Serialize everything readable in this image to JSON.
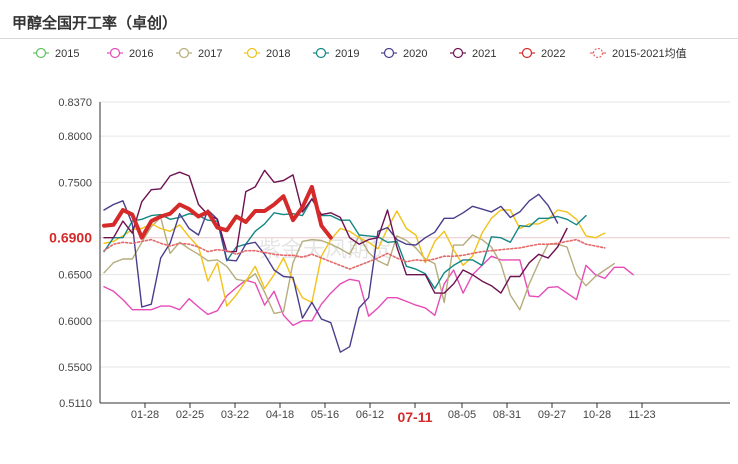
{
  "title": "甲醇全国开工率（卓创）",
  "chart_data": {
    "type": "line",
    "title": "甲醇全国开工率（卓创）",
    "xlabel": "",
    "ylabel": "",
    "ylim": [
      0.511,
      0.837
    ],
    "yticks": [
      "0.8370",
      "0.8000",
      "0.7500",
      "0.6900",
      "0.6500",
      "0.6000",
      "0.5500",
      "0.5110"
    ],
    "x_ticks": [
      "01-28",
      "02-25",
      "03-22",
      "04-18",
      "05-16",
      "06-12",
      "07-11",
      "08-05",
      "08-31",
      "09-27",
      "10-28",
      "11-23"
    ],
    "highlight_x": "07-11",
    "highlight_y": "0.6900",
    "grid": "horizontal",
    "legend_position": "top",
    "watermark": "紫金天风期货",
    "series": [
      {
        "name": "2015",
        "color": "#5ec45e",
        "style": "solid",
        "values": []
      },
      {
        "name": "2016",
        "color": "#e64bb8",
        "style": "solid",
        "values": [
          0.637,
          0.632,
          0.623,
          0.612,
          0.612,
          0.612,
          0.616,
          0.616,
          0.612,
          0.624,
          0.615,
          0.607,
          0.611,
          0.627,
          0.636,
          0.644,
          0.641,
          0.617,
          0.632,
          0.606,
          0.595,
          0.6,
          0.6,
          0.618,
          0.63,
          0.64,
          0.645,
          0.643,
          0.605,
          0.614,
          0.625,
          0.625,
          0.621,
          0.617,
          0.614,
          0.606,
          0.64,
          0.655,
          0.63,
          0.65,
          0.66,
          0.67,
          0.666,
          0.666,
          0.666,
          0.627,
          0.626,
          0.636,
          0.637,
          0.63,
          0.623,
          0.66,
          0.65,
          0.646,
          0.658,
          0.658,
          0.65
        ]
      },
      {
        "name": "2017",
        "color": "#b5ad7c",
        "style": "solid",
        "values": [
          0.652,
          0.663,
          0.667,
          0.667,
          0.685,
          0.702,
          0.712,
          0.673,
          0.685,
          0.678,
          0.672,
          0.665,
          0.666,
          0.659,
          0.645,
          0.643,
          0.651,
          0.631,
          0.608,
          0.61,
          0.663,
          0.686,
          0.688,
          0.687,
          0.683,
          0.678,
          0.672,
          0.692,
          0.674,
          0.665,
          0.66,
          0.692,
          0.687,
          0.679,
          0.667,
          0.662,
          0.62,
          0.682,
          0.682,
          0.693,
          0.688,
          0.68,
          0.662,
          0.628,
          0.612,
          0.64,
          0.663,
          0.683,
          0.683,
          0.68,
          0.65,
          0.638,
          0.648,
          0.655,
          0.662
        ]
      },
      {
        "name": "2018",
        "color": "#f2c21b",
        "style": "solid",
        "values": [
          0.684,
          0.686,
          0.692,
          0.699,
          0.7,
          0.705,
          0.7,
          0.697,
          0.704,
          0.691,
          0.68,
          0.643,
          0.663,
          0.616,
          0.628,
          0.643,
          0.659,
          0.635,
          0.65,
          0.668,
          0.644,
          0.625,
          0.62,
          0.67,
          0.688,
          0.7,
          0.697,
          0.69,
          0.685,
          0.678,
          0.7,
          0.719,
          0.7,
          0.693,
          0.663,
          0.686,
          0.697,
          0.677,
          0.66,
          0.67,
          0.695,
          0.711,
          0.72,
          0.72,
          0.7,
          0.705,
          0.705,
          0.71,
          0.72,
          0.718,
          0.71,
          0.692,
          0.69,
          0.695
        ]
      },
      {
        "name": "2019",
        "color": "#128784",
        "style": "solid",
        "values": [
          0.675,
          0.69,
          0.69,
          0.708,
          0.71,
          0.714,
          0.715,
          0.71,
          0.712,
          0.716,
          0.714,
          0.709,
          0.708,
          0.665,
          0.68,
          0.683,
          0.697,
          0.705,
          0.717,
          0.715,
          0.716,
          0.714,
          0.732,
          0.714,
          0.714,
          0.709,
          0.709,
          0.693,
          0.692,
          0.691,
          0.685,
          0.686,
          0.659,
          0.656,
          0.651,
          0.635,
          0.652,
          0.66,
          0.666,
          0.666,
          0.66,
          0.691,
          0.69,
          0.685,
          0.703,
          0.702,
          0.711,
          0.711,
          0.713,
          0.71,
          0.704,
          0.714
        ]
      },
      {
        "name": "2020",
        "color": "#4b3d8c",
        "style": "solid",
        "values": [
          0.72,
          0.726,
          0.73,
          0.705,
          0.615,
          0.618,
          0.668,
          0.684,
          0.716,
          0.7,
          0.693,
          0.72,
          0.71,
          0.666,
          0.665,
          0.683,
          0.685,
          0.672,
          0.655,
          0.648,
          0.647,
          0.603,
          0.62,
          0.602,
          0.598,
          0.566,
          0.572,
          0.614,
          0.625,
          0.697,
          0.701,
          0.688,
          0.683,
          0.682,
          0.69,
          0.696,
          0.711,
          0.711,
          0.717,
          0.724,
          0.721,
          0.718,
          0.724,
          0.712,
          0.718,
          0.73,
          0.737,
          0.725,
          0.706
        ]
      },
      {
        "name": "2021",
        "color": "#6e1150",
        "style": "solid",
        "values": [
          0.69,
          0.69,
          0.708,
          0.695,
          0.729,
          0.742,
          0.743,
          0.757,
          0.761,
          0.757,
          0.726,
          0.715,
          0.71,
          0.675,
          0.675,
          0.74,
          0.745,
          0.763,
          0.75,
          0.752,
          0.758,
          0.718,
          0.732,
          0.715,
          0.717,
          0.712,
          0.69,
          0.683,
          0.688,
          0.69,
          0.72,
          0.68,
          0.65,
          0.65,
          0.65,
          0.63,
          0.63,
          0.64,
          0.655,
          0.65,
          0.643,
          0.638,
          0.63,
          0.648,
          0.648,
          0.663,
          0.672,
          0.668,
          0.68,
          0.7
        ]
      },
      {
        "name": "2022",
        "color": "#d42a2a",
        "style": "bold",
        "values": [
          0.703,
          0.704,
          0.72,
          0.715,
          0.69,
          0.708,
          0.713,
          0.716,
          0.726,
          0.721,
          0.713,
          0.718,
          0.701,
          0.698,
          0.713,
          0.707,
          0.719,
          0.719,
          0.726,
          0.735,
          0.709,
          0.723,
          0.745,
          0.703,
          0.69
        ]
      },
      {
        "name": "2015-2021均值",
        "color": "#e46a6a",
        "style": "dotted",
        "values": [
          0.676,
          0.683,
          0.685,
          0.684,
          0.686,
          0.688,
          0.684,
          0.681,
          0.684,
          0.683,
          0.68,
          0.675,
          0.677,
          0.676,
          0.672,
          0.676,
          0.676,
          0.674,
          0.672,
          0.671,
          0.671,
          0.669,
          0.672,
          0.668,
          0.664,
          0.66,
          0.656,
          0.66,
          0.664,
          0.668,
          0.673,
          0.668,
          0.664,
          0.666,
          0.665,
          0.667,
          0.67,
          0.67,
          0.671,
          0.673,
          0.675,
          0.676,
          0.677,
          0.678,
          0.679,
          0.681,
          0.683,
          0.683,
          0.684,
          0.686,
          0.688,
          0.683,
          0.681,
          0.679
        ]
      }
    ]
  }
}
